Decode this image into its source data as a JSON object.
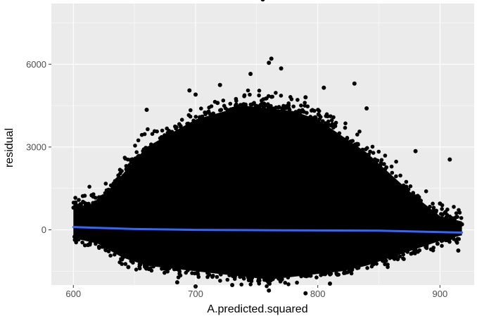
{
  "chart_data": {
    "type": "scatter",
    "title": "",
    "xlabel": "A.predicted.squared",
    "ylabel": "residual",
    "xlim": [
      582,
      928
    ],
    "ylim": [
      -2000,
      8200
    ],
    "x_ticks": [
      600,
      700,
      800,
      900
    ],
    "x_tick_labels": [
      "600",
      "700",
      "800",
      "900"
    ],
    "y_ticks": [
      0,
      3000,
      6000
    ],
    "y_tick_labels": [
      "0",
      "3000",
      "6000"
    ],
    "grid": true,
    "background": "#ebebeb",
    "point_color": "#000000",
    "series": [
      {
        "type": "scatter",
        "dense_cloud": {
          "x_range": [
            600,
            918
          ],
          "envelope_upper": [
            [
              600,
              800
            ],
            [
              620,
              1000
            ],
            [
              640,
              2000
            ],
            [
              660,
              3000
            ],
            [
              700,
              4000
            ],
            [
              740,
              4500
            ],
            [
              760,
              4400
            ],
            [
              780,
              4300
            ],
            [
              800,
              4000
            ],
            [
              820,
              3400
            ],
            [
              840,
              2800
            ],
            [
              860,
              2000
            ],
            [
              880,
              1200
            ],
            [
              900,
              500
            ],
            [
              918,
              300
            ]
          ],
          "envelope_lower": [
            [
              600,
              -300
            ],
            [
              620,
              -500
            ],
            [
              640,
              -1000
            ],
            [
              660,
              -1300
            ],
            [
              700,
              -1500
            ],
            [
              740,
              -1700
            ],
            [
              760,
              -1800
            ],
            [
              780,
              -1700
            ],
            [
              800,
              -1600
            ],
            [
              820,
              -1500
            ],
            [
              840,
              -1300
            ],
            [
              860,
              -1000
            ],
            [
              880,
              -700
            ],
            [
              900,
              -400
            ],
            [
              918,
              -200
            ]
          ]
        },
        "outliers": [
          [
            755,
            8350
          ],
          [
            762,
            6200
          ],
          [
            760,
            6050
          ],
          [
            770,
            5850
          ],
          [
            745,
            5650
          ],
          [
            720,
            5250
          ],
          [
            830,
            5300
          ],
          [
            805,
            5150
          ],
          [
            695,
            5050
          ],
          [
            700,
            4900
          ],
          [
            660,
            4350
          ],
          [
            718,
            4600
          ],
          [
            790,
            4800
          ],
          [
            840,
            4400
          ],
          [
            880,
            2850
          ],
          [
            908,
            2550
          ],
          [
            900,
            950
          ],
          [
            918,
            200
          ],
          [
            915,
            -750
          ],
          [
            601,
            -250
          ],
          [
            603,
            850
          ],
          [
            605,
            600
          ],
          [
            605,
            150
          ],
          [
            610,
            950
          ],
          [
            612,
            -550
          ],
          [
            760,
            -2200
          ],
          [
            790,
            -2300
          ],
          [
            730,
            -2000
          ],
          [
            700,
            -2050
          ],
          [
            685,
            -1900
          ],
          [
            810,
            -1950
          ],
          [
            645,
            -1350
          ],
          [
            615,
            1250
          ],
          [
            898,
            -500
          ],
          [
            893,
            -150
          ]
        ]
      },
      {
        "type": "smooth",
        "color": "#3366ff",
        "x": [
          600,
          650,
          700,
          750,
          800,
          850,
          900,
          918
        ],
        "y": [
          100,
          30,
          0,
          -10,
          -20,
          -30,
          -80,
          -100
        ]
      }
    ]
  }
}
